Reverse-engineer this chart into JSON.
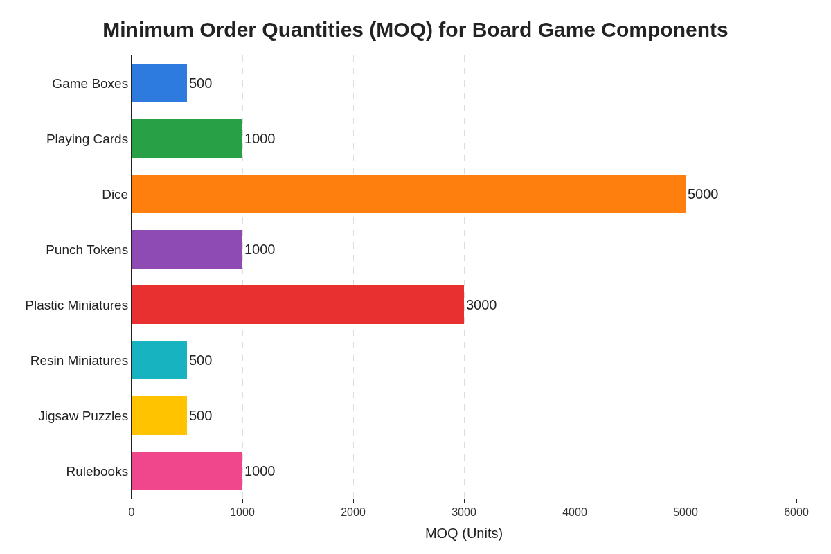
{
  "chart_data": {
    "type": "bar",
    "orientation": "horizontal",
    "title": "Minimum Order Quantities (MOQ) for Board Game Components",
    "xlabel": "MOQ (Units)",
    "categories": [
      "Game Boxes",
      "Playing Cards",
      "Dice",
      "Punch Tokens",
      "Plastic Miniatures",
      "Resin Miniatures",
      "Jigsaw Puzzles",
      "Rulebooks"
    ],
    "values": [
      500,
      1000,
      5000,
      1000,
      3000,
      500,
      500,
      1000
    ],
    "colors": [
      "#2e7be0",
      "#28a045",
      "#ff7f0e",
      "#8e4bb3",
      "#e83030",
      "#17b3c0",
      "#ffc300",
      "#f0468c"
    ],
    "xlim": [
      0,
      6000
    ],
    "xticks": [
      0,
      1000,
      2000,
      3000,
      4000,
      5000,
      6000
    ],
    "grid": "x",
    "data_labels": true
  }
}
